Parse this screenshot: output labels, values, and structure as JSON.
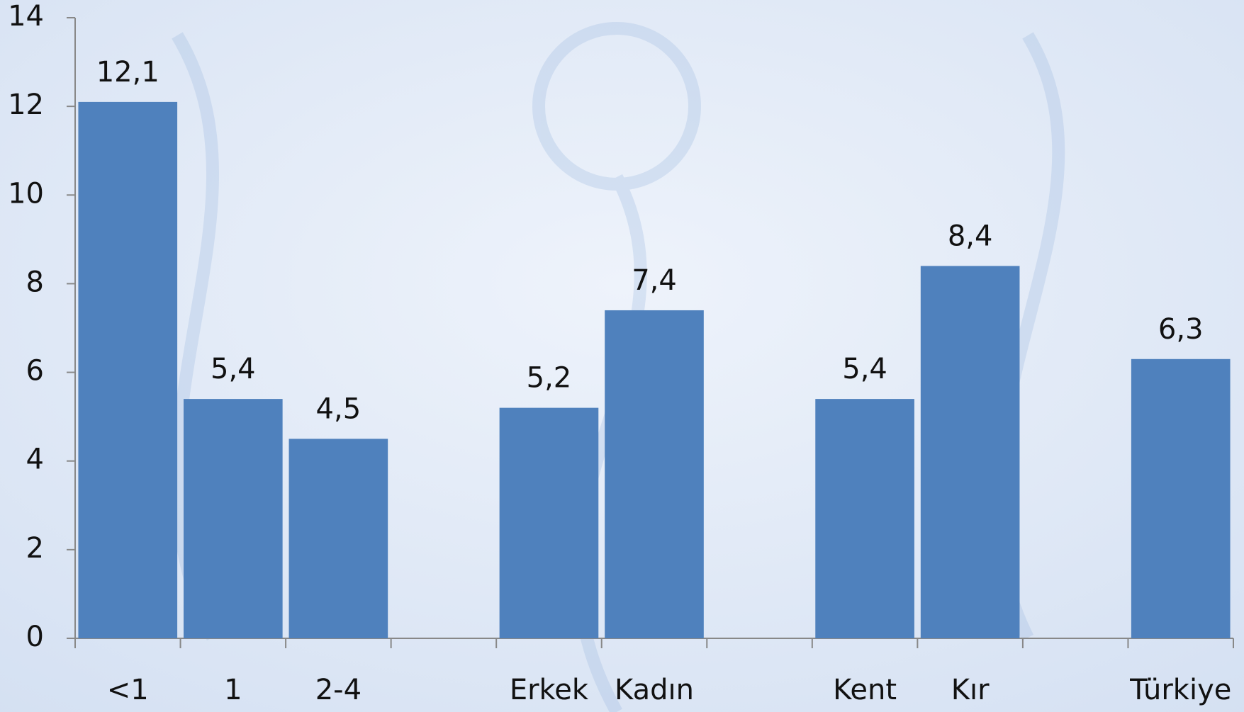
{
  "chart_data": {
    "type": "bar",
    "categories": [
      "<1",
      "1",
      "2-4",
      null,
      "Erkek",
      "Kadın",
      null,
      "Kent",
      "Kır",
      null,
      "Türkiye"
    ],
    "values": [
      12.1,
      5.4,
      4.5,
      null,
      5.2,
      7.4,
      null,
      5.4,
      8.4,
      null,
      6.3
    ],
    "value_labels": [
      "12,1",
      "5,4",
      "4,5",
      null,
      "5,2",
      "7,4",
      null,
      "5,4",
      "8,4",
      null,
      "6,3"
    ],
    "color": "#4f81bd",
    "ylim": [
      0,
      14
    ],
    "yticks": [
      0,
      2,
      4,
      6,
      8,
      10,
      12,
      14
    ],
    "grid": false
  }
}
